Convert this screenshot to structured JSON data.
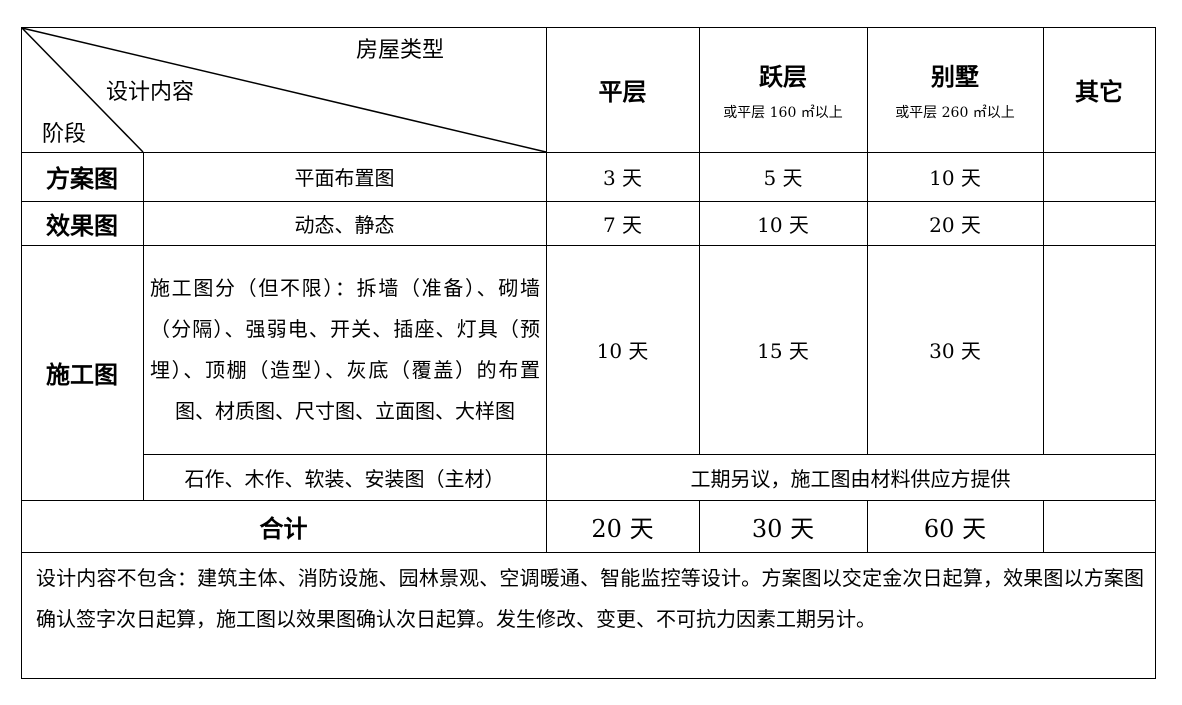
{
  "header": {
    "house_type": "房屋类型",
    "design_content": "设计内容",
    "stage": "阶段",
    "columns": [
      {
        "title": "平层",
        "note": ""
      },
      {
        "title": "跃层",
        "note": "或平层 160 ㎡以上"
      },
      {
        "title": "别墅",
        "note": "或平层 260 ㎡以上"
      },
      {
        "title": "其它",
        "note": ""
      }
    ]
  },
  "rows": [
    {
      "stage": "方案图",
      "content": "平面布置图",
      "values": [
        "3 天",
        "5 天",
        "10 天",
        ""
      ]
    },
    {
      "stage": "效果图",
      "content": "动态、静态",
      "values": [
        "7 天",
        "10 天",
        "20 天",
        ""
      ]
    },
    {
      "stage": "施工图",
      "content": "施工图分（但不限）：拆墙（准备）、砌墙（分隔）、强弱电、开关、插座、灯具（预埋）、顶棚（造型）、灰底（覆盖）的布置图、材质图、尺寸图、立面图、大样图",
      "values": [
        "10 天",
        "15 天",
        "30 天",
        ""
      ]
    },
    {
      "content": "石作、木作、软装、安装图（主材）",
      "merged_note": "工期另议，施工图由材料供应方提供"
    }
  ],
  "total": {
    "label": "合计",
    "values": [
      "20 天",
      "30 天",
      "60 天",
      ""
    ]
  },
  "footnote": "设计内容不包含：建筑主体、消防设施、园林景观、空调暖通、智能监控等设计。方案图以交定金次日起算，效果图以方案图确认签字次日起算，施工图以效果图确认次日起算。发生修改、变更、不可抗力因素工期另计。"
}
